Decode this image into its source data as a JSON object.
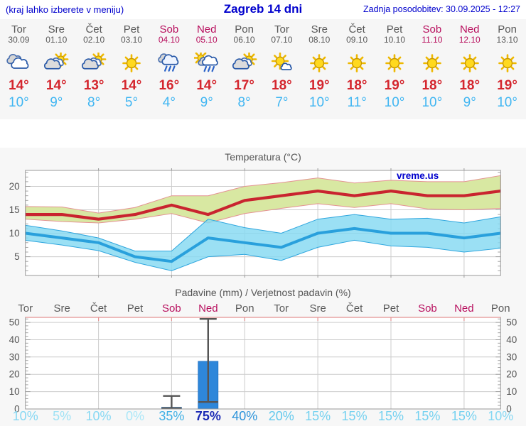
{
  "header": {
    "hint": "(kraj lahko izberete v meniju)",
    "title": "Zagreb 14 dni",
    "updated": "Zadnja posodobitev: 30.09.2025 - 12:27"
  },
  "strip": {
    "days": [
      {
        "name": "Tor",
        "date": "30.09",
        "icon": "cloudy",
        "tmax": 14,
        "tmin": 10,
        "weekend": false
      },
      {
        "name": "Sre",
        "date": "01.10",
        "icon": "partly-cloudy",
        "tmax": 14,
        "tmin": 9,
        "weekend": false
      },
      {
        "name": "Čet",
        "date": "02.10",
        "icon": "partly-cloudy",
        "tmax": 13,
        "tmin": 8,
        "weekend": false
      },
      {
        "name": "Pet",
        "date": "03.10",
        "icon": "sunny",
        "tmax": 14,
        "tmin": 5,
        "weekend": false
      },
      {
        "name": "Sob",
        "date": "04.10",
        "icon": "rain",
        "tmax": 16,
        "tmin": 4,
        "weekend": true
      },
      {
        "name": "Ned",
        "date": "05.10",
        "icon": "sun-shower",
        "tmax": 14,
        "tmin": 9,
        "weekend": true
      },
      {
        "name": "Pon",
        "date": "06.10",
        "icon": "partly-cloudy",
        "tmax": 17,
        "tmin": 8,
        "weekend": false
      },
      {
        "name": "Tor",
        "date": "07.10",
        "icon": "mostly-sunny",
        "tmax": 18,
        "tmin": 7,
        "weekend": false
      },
      {
        "name": "Sre",
        "date": "08.10",
        "icon": "sunny",
        "tmax": 19,
        "tmin": 10,
        "weekend": false
      },
      {
        "name": "Čet",
        "date": "09.10",
        "icon": "sunny",
        "tmax": 18,
        "tmin": 11,
        "weekend": false
      },
      {
        "name": "Pet",
        "date": "10.10",
        "icon": "sunny",
        "tmax": 19,
        "tmin": 10,
        "weekend": false
      },
      {
        "name": "Sob",
        "date": "11.10",
        "icon": "sunny",
        "tmax": 18,
        "tmin": 10,
        "weekend": true
      },
      {
        "name": "Ned",
        "date": "12.10",
        "icon": "sunny",
        "tmax": 18,
        "tmin": 9,
        "weekend": true
      },
      {
        "name": "Pon",
        "date": "13.10",
        "icon": "sunny",
        "tmax": 19,
        "tmin": 10,
        "weekend": false
      }
    ]
  },
  "chart_data": [
    {
      "type": "line",
      "title": "Temperatura (°C)",
      "watermark": "vreme.us",
      "categories": [
        "Tor",
        "Sre",
        "Čet",
        "Pet",
        "Sob",
        "Ned",
        "Pon",
        "Tor",
        "Sre",
        "Čet",
        "Pet",
        "Sob",
        "Ned",
        "Pon"
      ],
      "ylim": [
        1,
        23.4
      ],
      "yticks": [
        5,
        10,
        15,
        20
      ],
      "grid": true,
      "series": [
        {
          "name": "tmax",
          "values": [
            14,
            14,
            13,
            14,
            16,
            14,
            17,
            18,
            19,
            18,
            19,
            18,
            18,
            19
          ]
        },
        {
          "name": "tmax_band_upper",
          "values": [
            15.7,
            15.6,
            14.3,
            15.5,
            18,
            18,
            20,
            20.8,
            21.8,
            20.7,
            21.3,
            21,
            21,
            22.3
          ]
        },
        {
          "name": "tmax_band_lower",
          "values": [
            13,
            12.5,
            12.2,
            13,
            14.2,
            12.2,
            14.2,
            15.3,
            16.3,
            15.5,
            16.3,
            15.2,
            15,
            15.3
          ]
        },
        {
          "name": "tmin",
          "values": [
            10,
            9,
            8,
            5,
            4,
            9,
            8,
            7,
            10,
            11,
            10,
            10,
            9,
            10
          ]
        },
        {
          "name": "tmin_band_upper",
          "values": [
            11.7,
            10.5,
            9,
            6.2,
            6.2,
            13,
            11.2,
            10,
            13,
            14,
            13,
            13.2,
            12.2,
            13.5
          ]
        },
        {
          "name": "tmin_band_lower",
          "values": [
            8.5,
            7.5,
            6.3,
            3.8,
            2,
            5,
            5.5,
            4.2,
            7,
            8.5,
            7.3,
            7,
            6,
            6.8
          ]
        }
      ]
    },
    {
      "type": "bar",
      "title": "Padavine (mm) / Verjetnost padavin (%)",
      "categories": [
        "Tor",
        "Sre",
        "Čet",
        "Pet",
        "Sob",
        "Ned",
        "Pon",
        "Tor",
        "Sre",
        "Čet",
        "Pet",
        "Sob",
        "Ned",
        "Pon"
      ],
      "values_mm": [
        0,
        0,
        0,
        0,
        1,
        27.5,
        0,
        0,
        0,
        0,
        0,
        0,
        0,
        0
      ],
      "whiskers": [
        {
          "day_index": 4,
          "low": 0.5,
          "high": 7.5
        },
        {
          "day_index": 5,
          "low": 4,
          "high": 52
        }
      ],
      "prob_percent": [
        10,
        5,
        10,
        0,
        35,
        75,
        40,
        20,
        15,
        15,
        15,
        15,
        15,
        10
      ],
      "ylim": [
        0,
        52.9
      ],
      "yticks": [
        0,
        10,
        20,
        30,
        40,
        50
      ],
      "grid": true
    }
  ],
  "colors": {
    "header_blue": "#0000cd",
    "weekday_gray": "#595959",
    "weekend_crimson": "#b80f5e",
    "tmax_red": "#d4262e",
    "tmin_blue": "#41b6f2",
    "line_red": "#c9242f",
    "line_blue": "#29a0dc",
    "band_green": "#d8e8a2",
    "band_green_edge": "#e49292",
    "band_cyan": "#85d9f2",
    "band_cyan_edge": "#2fa6de",
    "bar_blue": "#2e87da",
    "whisker_gray": "#555555",
    "grid": "#cccccc",
    "axis": "#999999",
    "prob_colors": {
      "0": "#abe7f8",
      "5": "#9fe2f5",
      "10": "#86d8f3",
      "15": "#74d1f0",
      "20": "#63c9ed",
      "35": "#3fb0e5",
      "40": "#2b93da",
      "75": "#1b2ab5"
    }
  }
}
